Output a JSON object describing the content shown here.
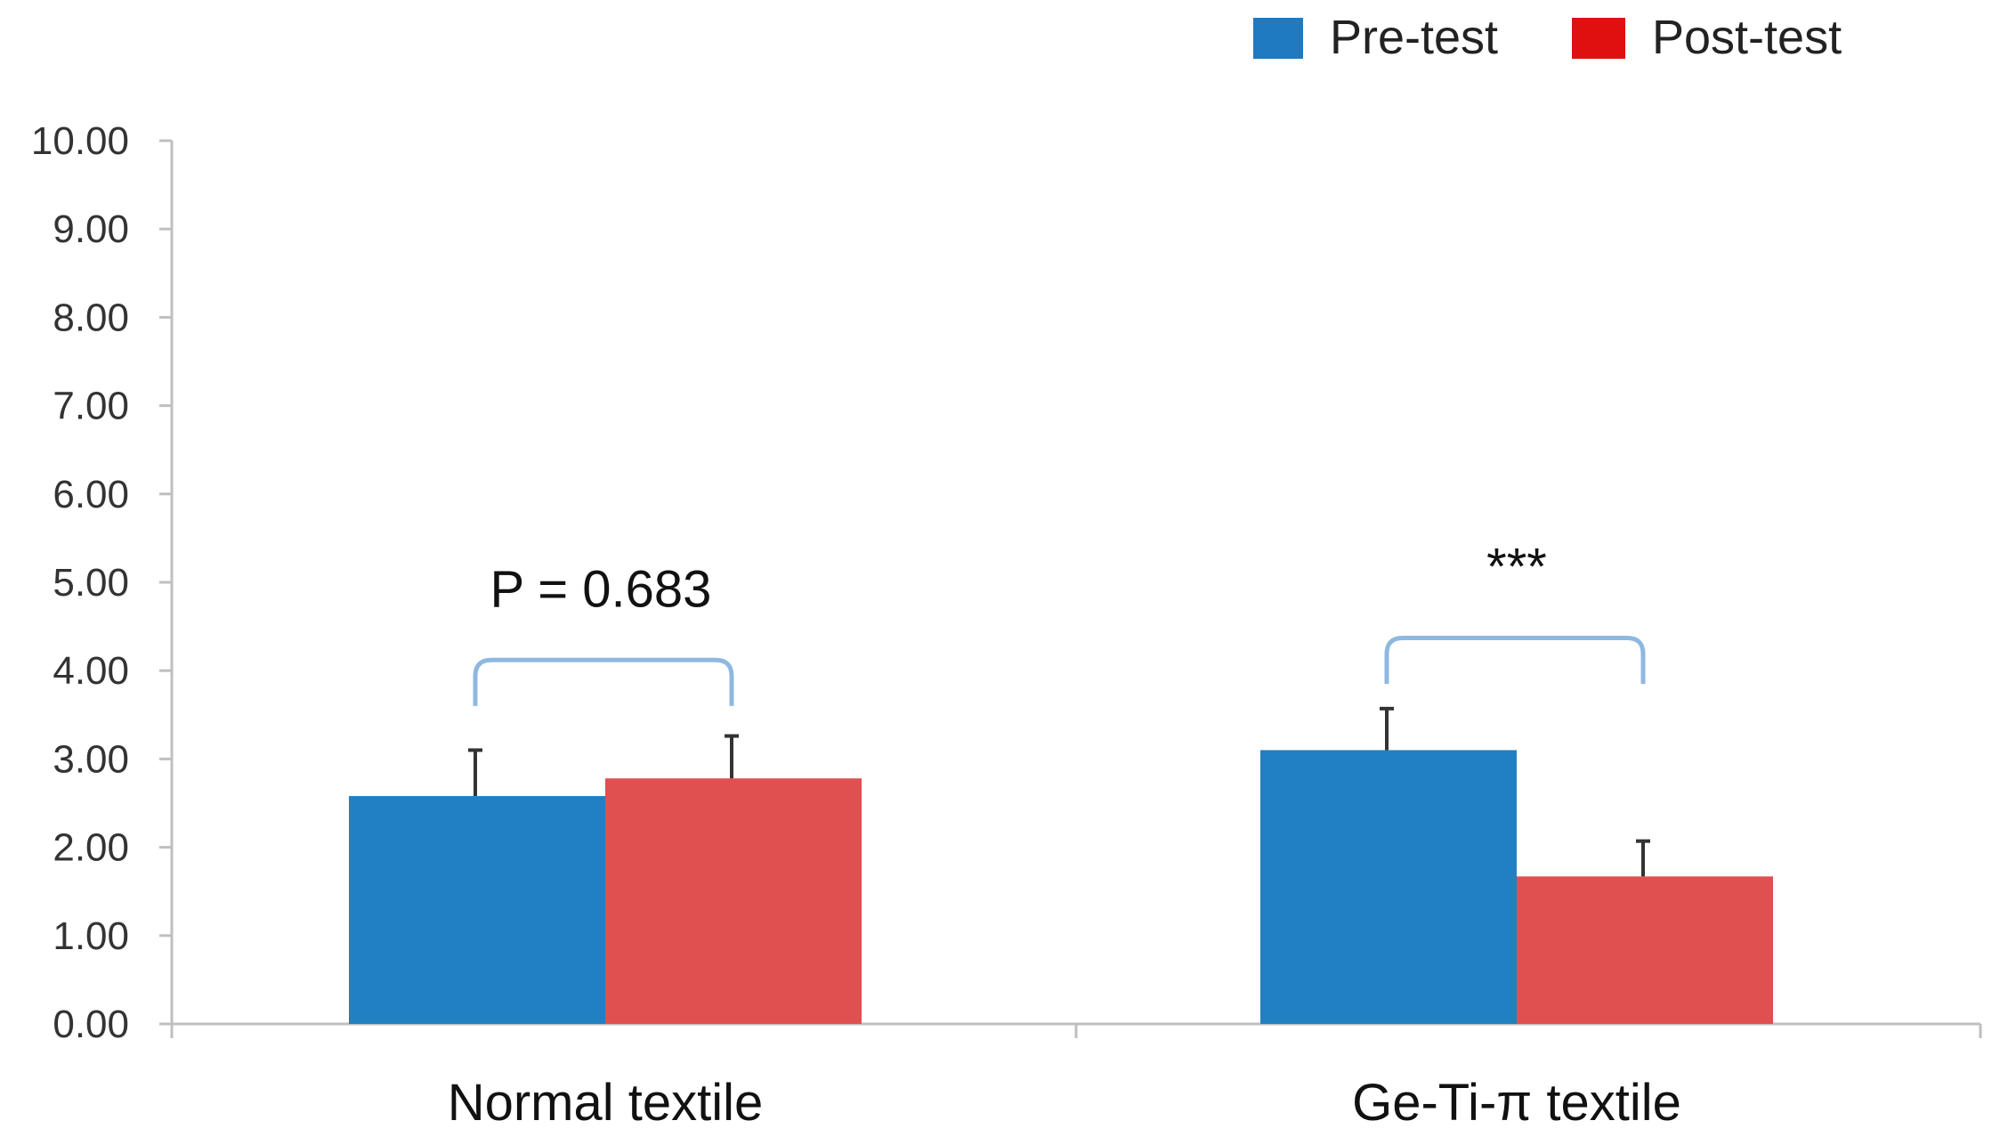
{
  "chart_data": {
    "type": "bar",
    "title": "",
    "xlabel": "",
    "ylabel": "",
    "ylim": [
      0,
      10
    ],
    "y_ticks": [
      "0.00",
      "1.00",
      "2.00",
      "3.00",
      "4.00",
      "5.00",
      "6.00",
      "7.00",
      "8.00",
      "9.00",
      "10.00"
    ],
    "categories": [
      "Normal textile",
      "Ge-Ti-π textile"
    ],
    "series": [
      {
        "name": "Pre-test",
        "color": "#2180c2",
        "values": [
          2.58,
          3.1
        ],
        "errors": [
          0.52,
          0.47
        ]
      },
      {
        "name": "Post-test",
        "color": "#e05050",
        "values": [
          2.78,
          1.67
        ],
        "errors": [
          0.48,
          0.4
        ]
      }
    ],
    "legend_position": "top-right",
    "legend_swatch_colors": [
      "#1f7ac2",
      "#e01010"
    ],
    "grid": false,
    "annotations": [
      {
        "category": 0,
        "text": "P = 0.683",
        "bracket_top": 4.12,
        "bracket_bottom": 3.6
      },
      {
        "category": 1,
        "text": "***",
        "bracket_top": 4.37,
        "bracket_bottom": 3.85
      }
    ],
    "bracket_color": "#8fb8e0"
  }
}
